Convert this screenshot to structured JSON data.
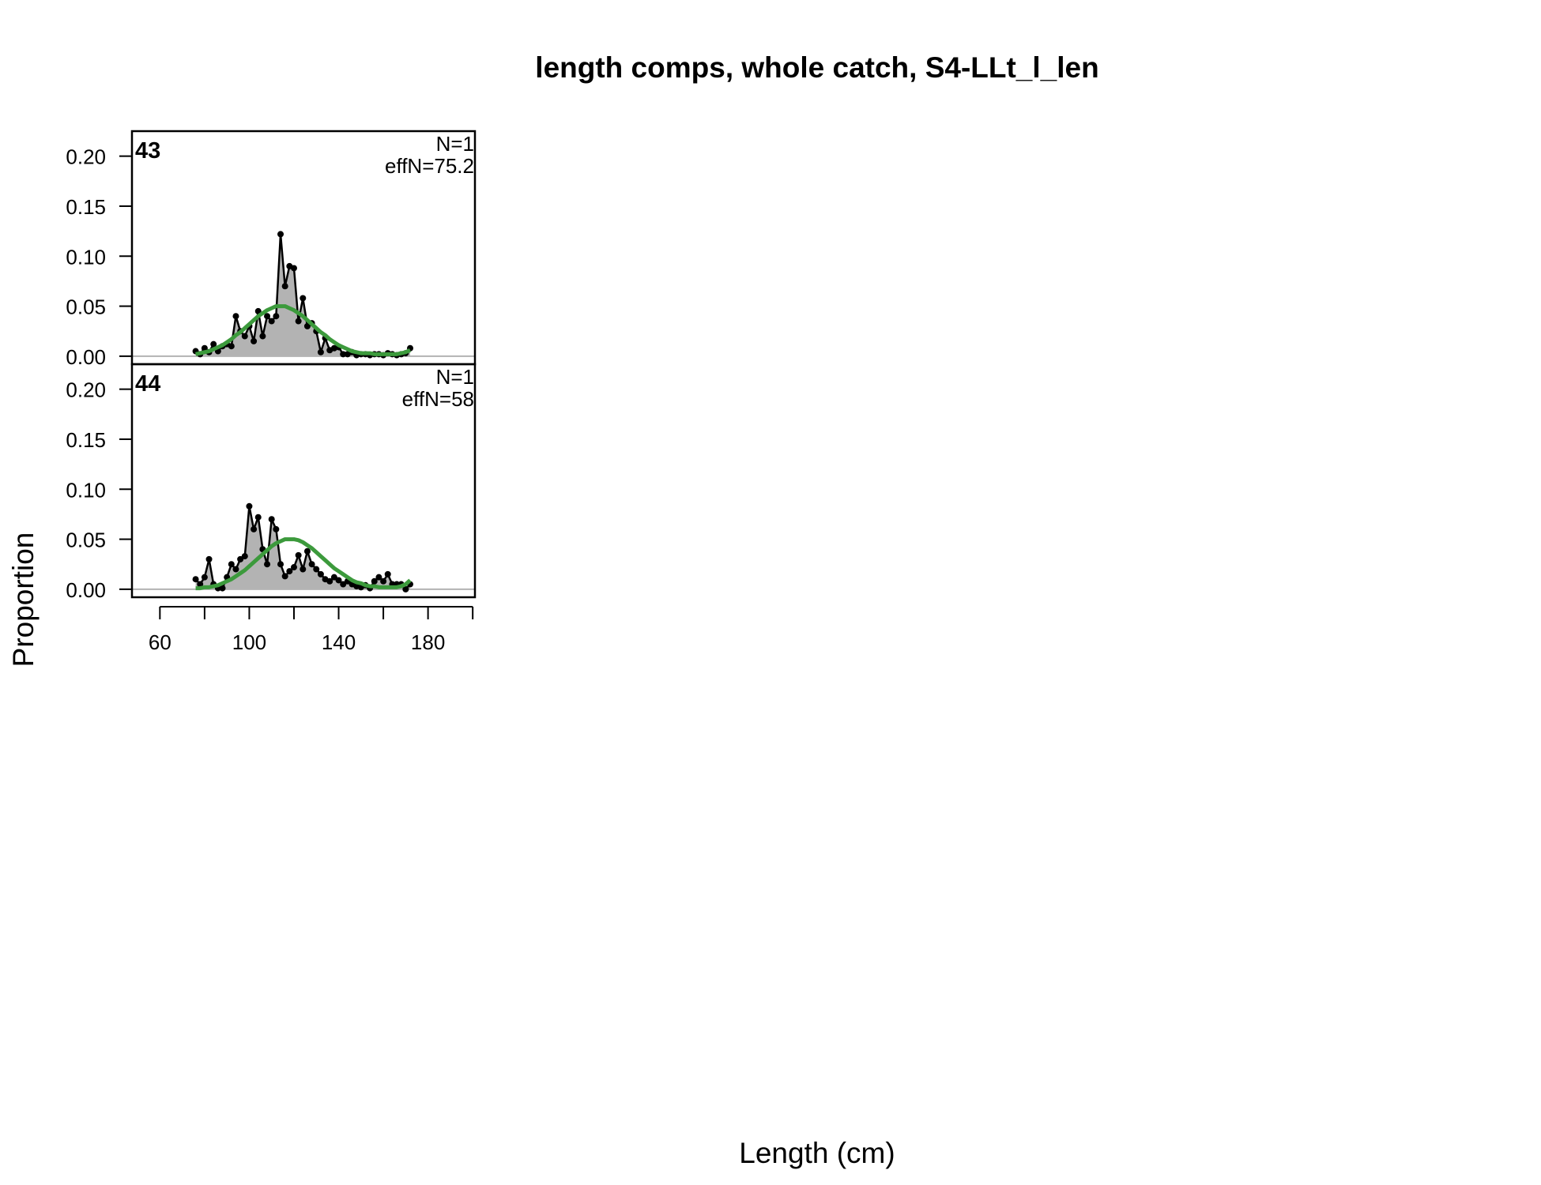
{
  "title": "length comps, whole catch, S4-LLt_l_len",
  "x_label": "Length (cm)",
  "y_label": "Proportion",
  "chart_data": [
    {
      "type": "line",
      "panel_label": "43",
      "annotations": [
        "N=1",
        "effN=75.2"
      ],
      "xlim": [
        47.5,
        201
      ],
      "xticks": [
        60,
        100,
        140,
        180
      ],
      "xminor_ticks": [
        80,
        120,
        160,
        200
      ],
      "ylim": [
        -0.008,
        0.225
      ],
      "yticks": [
        {
          "value": 0,
          "label": "0.00"
        },
        {
          "value": 0.05,
          "label": "0.05"
        },
        {
          "value": 0.1,
          "label": "0.10"
        },
        {
          "value": 0.15,
          "label": "0.15"
        },
        {
          "value": 0.2,
          "label": "0.20"
        }
      ],
      "x": [
        76,
        78,
        80,
        82,
        84,
        86,
        88,
        90,
        92,
        94,
        96,
        98,
        100,
        102,
        104,
        106,
        108,
        110,
        112,
        114,
        116,
        118,
        120,
        122,
        124,
        126,
        128,
        130,
        132,
        134,
        136,
        138,
        140,
        142,
        144,
        146,
        148,
        150,
        152,
        154,
        156,
        158,
        160,
        162,
        164,
        166,
        168,
        170,
        172
      ],
      "series": [
        {
          "color": "#000000",
          "fill": "#b3b3b3",
          "values": [
            0.005,
            0.002,
            0.008,
            0.004,
            0.012,
            0.005,
            0.01,
            0.012,
            0.01,
            0.04,
            0.025,
            0.02,
            0.03,
            0.015,
            0.045,
            0.02,
            0.04,
            0.035,
            0.04,
            0.122,
            0.07,
            0.09,
            0.088,
            0.035,
            0.058,
            0.03,
            0.033,
            0.025,
            0.004,
            0.018,
            0.006,
            0.008,
            0.009,
            0.002,
            0.002,
            0.004,
            0.001,
            0.002,
            0.002,
            0.001,
            0.002,
            0.002,
            0.001,
            0.003,
            0.002,
            0.001,
            0.002,
            0.003,
            0.008
          ]
        },
        {
          "color": "#3c9a3c",
          "values": [
            0.002,
            0.003,
            0.004,
            0.005,
            0.007,
            0.009,
            0.011,
            0.014,
            0.017,
            0.021,
            0.024,
            0.028,
            0.032,
            0.036,
            0.04,
            0.043,
            0.046,
            0.048,
            0.05,
            0.05,
            0.05,
            0.048,
            0.046,
            0.043,
            0.04,
            0.036,
            0.032,
            0.028,
            0.024,
            0.021,
            0.017,
            0.014,
            0.011,
            0.009,
            0.007,
            0.005,
            0.004,
            0.003,
            0.003,
            0.003,
            0.002,
            0.002,
            0.002,
            0.002,
            0.002,
            0.002,
            0.003,
            0.004,
            0.006
          ]
        }
      ]
    },
    {
      "type": "line",
      "panel_label": "44",
      "annotations": [
        "N=1",
        "effN=58"
      ],
      "xlim": [
        47.5,
        201
      ],
      "xticks": [
        60,
        100,
        140,
        180
      ],
      "xminor_ticks": [
        80,
        120,
        160,
        200
      ],
      "ylim": [
        -0.008,
        0.225
      ],
      "yticks": [
        {
          "value": 0,
          "label": "0.00"
        },
        {
          "value": 0.05,
          "label": "0.05"
        },
        {
          "value": 0.1,
          "label": "0.10"
        },
        {
          "value": 0.15,
          "label": "0.15"
        },
        {
          "value": 0.2,
          "label": "0.20"
        }
      ],
      "x": [
        76,
        78,
        80,
        82,
        84,
        86,
        88,
        90,
        92,
        94,
        96,
        98,
        100,
        102,
        104,
        106,
        108,
        110,
        112,
        114,
        116,
        118,
        120,
        122,
        124,
        126,
        128,
        130,
        132,
        134,
        136,
        138,
        140,
        142,
        144,
        146,
        148,
        150,
        152,
        154,
        156,
        158,
        160,
        162,
        164,
        166,
        168,
        170,
        172
      ],
      "series": [
        {
          "color": "#000000",
          "fill": "#b3b3b3",
          "values": [
            0.01,
            0.005,
            0.012,
            0.03,
            0.005,
            0.001,
            0.001,
            0.012,
            0.025,
            0.02,
            0.03,
            0.033,
            0.083,
            0.06,
            0.072,
            0.04,
            0.025,
            0.07,
            0.06,
            0.025,
            0.013,
            0.018,
            0.022,
            0.034,
            0.02,
            0.038,
            0.025,
            0.02,
            0.015,
            0.01,
            0.008,
            0.012,
            0.009,
            0.005,
            0.008,
            0.005,
            0.003,
            0.002,
            0.004,
            0.001,
            0.008,
            0.012,
            0.008,
            0.015,
            0.005,
            0.005,
            0.005,
            0.0,
            0.005
          ]
        },
        {
          "color": "#3c9a3c",
          "values": [
            0.001,
            0.001,
            0.002,
            0.002,
            0.003,
            0.004,
            0.006,
            0.008,
            0.01,
            0.013,
            0.016,
            0.019,
            0.023,
            0.027,
            0.031,
            0.035,
            0.039,
            0.043,
            0.046,
            0.048,
            0.05,
            0.05,
            0.05,
            0.049,
            0.047,
            0.044,
            0.041,
            0.037,
            0.033,
            0.029,
            0.025,
            0.021,
            0.018,
            0.015,
            0.012,
            0.009,
            0.007,
            0.006,
            0.004,
            0.003,
            0.003,
            0.002,
            0.002,
            0.002,
            0.002,
            0.002,
            0.003,
            0.005,
            0.009
          ]
        }
      ]
    }
  ]
}
